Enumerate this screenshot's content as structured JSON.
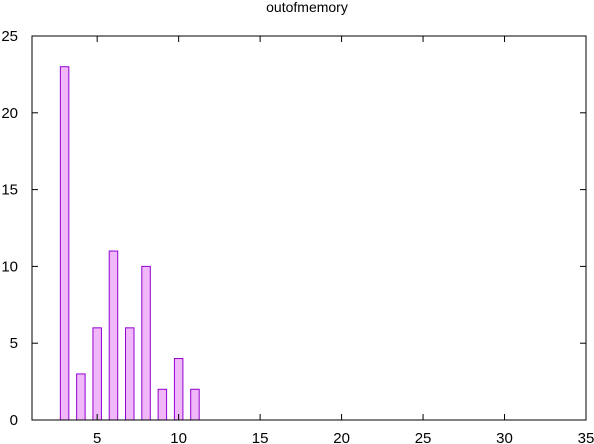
{
  "chart_data": {
    "type": "bar",
    "title": "outofmemory",
    "xlabel": "",
    "ylabel": "",
    "x": [
      3,
      4,
      5,
      6,
      7,
      8,
      9,
      10,
      11
    ],
    "values": [
      23,
      3,
      6,
      11,
      6,
      10,
      2,
      4,
      2
    ],
    "xlim": [
      1,
      35
    ],
    "ylim": [
      0,
      25
    ],
    "xticks": [
      5,
      10,
      15,
      20,
      25,
      30,
      35
    ],
    "yticks": [
      0,
      5,
      10,
      15,
      20,
      25
    ],
    "grid": false,
    "legend": "none",
    "bar_fill": "#f0b8f8",
    "bar_stroke": "#9400d3"
  }
}
